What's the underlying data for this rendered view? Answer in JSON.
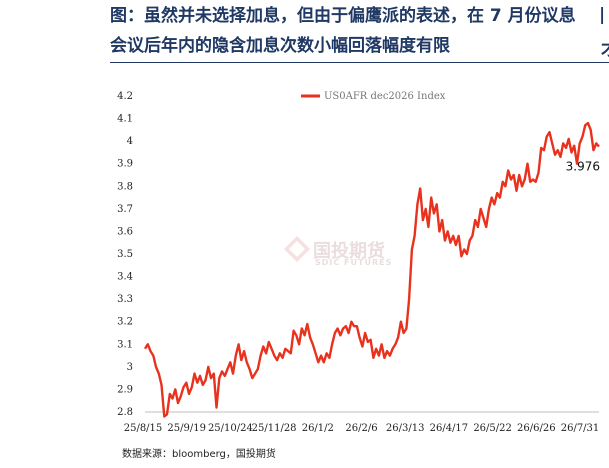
{
  "header": {
    "title_line1": "图：虽然并未选择加息，但由于偏鹰派的表述，在 7 月份议息",
    "title_line2": "会议后年内的隐含加息次数小幅回落幅度有限",
    "edge_fragment1": "|",
    "edge_fragment2": "才"
  },
  "source": "数据来源：bloomberg，国投期货",
  "watermark": {
    "cn": "国投期货",
    "en": "SDIC FUTURES"
  },
  "chart_data": {
    "type": "line",
    "title": "",
    "xlabel": "",
    "ylabel": "",
    "ylim": [
      2.8,
      4.2
    ],
    "yticks": [
      "2.8",
      "2.9",
      "3",
      "3.1",
      "3.2",
      "3.3",
      "3.4",
      "3.5",
      "3.6",
      "3.7",
      "3.8",
      "3.9",
      "4",
      "4.1",
      "4.2"
    ],
    "xticks": [
      "25/8/15",
      "25/9/19",
      "25/10/24",
      "25/11/28",
      "26/1/2",
      "26/2/6",
      "26/3/13",
      "26/4/17",
      "26/5/22",
      "26/6/26",
      "26/7/31"
    ],
    "legend": {
      "position": "top-center"
    },
    "last_value_label": "3.976",
    "series": [
      {
        "name": "US0AFR dec2026 Index",
        "color": "#e8321e",
        "points": [
          [
            0,
            3.08
          ],
          [
            1,
            3.1
          ],
          [
            2,
            3.07
          ],
          [
            3,
            3.05
          ],
          [
            4,
            3.0
          ],
          [
            5,
            2.97
          ],
          [
            6,
            2.92
          ],
          [
            7,
            2.78
          ],
          [
            8,
            2.79
          ],
          [
            9,
            2.88
          ],
          [
            10,
            2.86
          ],
          [
            11,
            2.9
          ],
          [
            12,
            2.84
          ],
          [
            13,
            2.87
          ],
          [
            14,
            2.91
          ],
          [
            15,
            2.93
          ],
          [
            16,
            2.88
          ],
          [
            17,
            2.91
          ],
          [
            18,
            2.97
          ],
          [
            19,
            2.93
          ],
          [
            20,
            2.96
          ],
          [
            21,
            2.92
          ],
          [
            22,
            2.94
          ],
          [
            23,
            3.0
          ],
          [
            24,
            2.95
          ],
          [
            25,
            2.97
          ],
          [
            26,
            2.82
          ],
          [
            27,
            2.95
          ],
          [
            28,
            2.98
          ],
          [
            29,
            2.96
          ],
          [
            30,
            2.99
          ],
          [
            31,
            3.02
          ],
          [
            32,
            2.97
          ],
          [
            33,
            3.05
          ],
          [
            34,
            3.1
          ],
          [
            35,
            3.03
          ],
          [
            36,
            3.07
          ],
          [
            37,
            3.02
          ],
          [
            38,
            2.99
          ],
          [
            39,
            2.95
          ],
          [
            40,
            2.97
          ],
          [
            41,
            2.99
          ],
          [
            42,
            3.05
          ],
          [
            43,
            3.09
          ],
          [
            44,
            3.06
          ],
          [
            45,
            3.11
          ],
          [
            46,
            3.08
          ],
          [
            47,
            3.05
          ],
          [
            48,
            3.03
          ],
          [
            49,
            3.06
          ],
          [
            50,
            3.04
          ],
          [
            51,
            3.08
          ],
          [
            52,
            3.07
          ],
          [
            53,
            3.06
          ],
          [
            54,
            3.16
          ],
          [
            55,
            3.14
          ],
          [
            56,
            3.1
          ],
          [
            57,
            3.17
          ],
          [
            58,
            3.14
          ],
          [
            59,
            3.19
          ],
          [
            60,
            3.13
          ],
          [
            61,
            3.1
          ],
          [
            62,
            3.06
          ],
          [
            63,
            3.02
          ],
          [
            64,
            3.05
          ],
          [
            65,
            3.02
          ],
          [
            66,
            3.06
          ],
          [
            67,
            3.04
          ],
          [
            68,
            3.1
          ],
          [
            69,
            3.15
          ],
          [
            70,
            3.17
          ],
          [
            71,
            3.14
          ],
          [
            72,
            3.17
          ],
          [
            73,
            3.18
          ],
          [
            74,
            3.15
          ],
          [
            75,
            3.2
          ],
          [
            76,
            3.18
          ],
          [
            77,
            3.18
          ],
          [
            78,
            3.13
          ],
          [
            79,
            3.09
          ],
          [
            80,
            3.15
          ],
          [
            81,
            3.11
          ],
          [
            82,
            3.12
          ],
          [
            83,
            3.04
          ],
          [
            84,
            3.08
          ],
          [
            85,
            3.05
          ],
          [
            86,
            3.1
          ],
          [
            87,
            3.04
          ],
          [
            88,
            3.07
          ],
          [
            89,
            3.05
          ],
          [
            90,
            3.08
          ],
          [
            91,
            3.1
          ],
          [
            92,
            3.13
          ],
          [
            93,
            3.2
          ],
          [
            94,
            3.15
          ],
          [
            95,
            3.17
          ],
          [
            96,
            3.3
          ],
          [
            97,
            3.52
          ],
          [
            98,
            3.58
          ],
          [
            99,
            3.72
          ],
          [
            100,
            3.79
          ],
          [
            101,
            3.65
          ],
          [
            102,
            3.7
          ],
          [
            103,
            3.62
          ],
          [
            104,
            3.75
          ],
          [
            105,
            3.68
          ],
          [
            106,
            3.72
          ],
          [
            107,
            3.6
          ],
          [
            108,
            3.65
          ],
          [
            109,
            3.56
          ],
          [
            110,
            3.6
          ],
          [
            111,
            3.55
          ],
          [
            112,
            3.58
          ],
          [
            113,
            3.54
          ],
          [
            114,
            3.58
          ],
          [
            115,
            3.49
          ],
          [
            116,
            3.52
          ],
          [
            117,
            3.5
          ],
          [
            118,
            3.56
          ],
          [
            119,
            3.58
          ],
          [
            120,
            3.65
          ],
          [
            121,
            3.62
          ],
          [
            122,
            3.7
          ],
          [
            123,
            3.66
          ],
          [
            124,
            3.62
          ],
          [
            125,
            3.7
          ],
          [
            126,
            3.75
          ],
          [
            127,
            3.72
          ],
          [
            128,
            3.77
          ],
          [
            129,
            3.75
          ],
          [
            130,
            3.82
          ],
          [
            131,
            3.8
          ],
          [
            132,
            3.87
          ],
          [
            133,
            3.83
          ],
          [
            134,
            3.85
          ],
          [
            135,
            3.78
          ],
          [
            136,
            3.85
          ],
          [
            137,
            3.8
          ],
          [
            138,
            3.83
          ],
          [
            139,
            3.9
          ],
          [
            140,
            3.82
          ],
          [
            141,
            3.83
          ],
          [
            142,
            3.82
          ],
          [
            143,
            3.86
          ],
          [
            144,
            3.97
          ],
          [
            145,
            3.96
          ],
          [
            146,
            4.02
          ],
          [
            147,
            4.04
          ],
          [
            148,
            3.99
          ],
          [
            149,
            3.94
          ],
          [
            150,
            3.96
          ],
          [
            151,
            3.93
          ],
          [
            152,
            3.99
          ],
          [
            153,
            3.97
          ],
          [
            154,
            4.01
          ],
          [
            155,
            3.95
          ],
          [
            156,
            3.98
          ],
          [
            157,
            3.9
          ],
          [
            158,
            3.99
          ],
          [
            159,
            4.02
          ],
          [
            160,
            4.07
          ],
          [
            161,
            4.08
          ],
          [
            162,
            4.05
          ],
          [
            163,
            3.96
          ],
          [
            164,
            3.99
          ],
          [
            165,
            3.976
          ]
        ]
      }
    ]
  }
}
